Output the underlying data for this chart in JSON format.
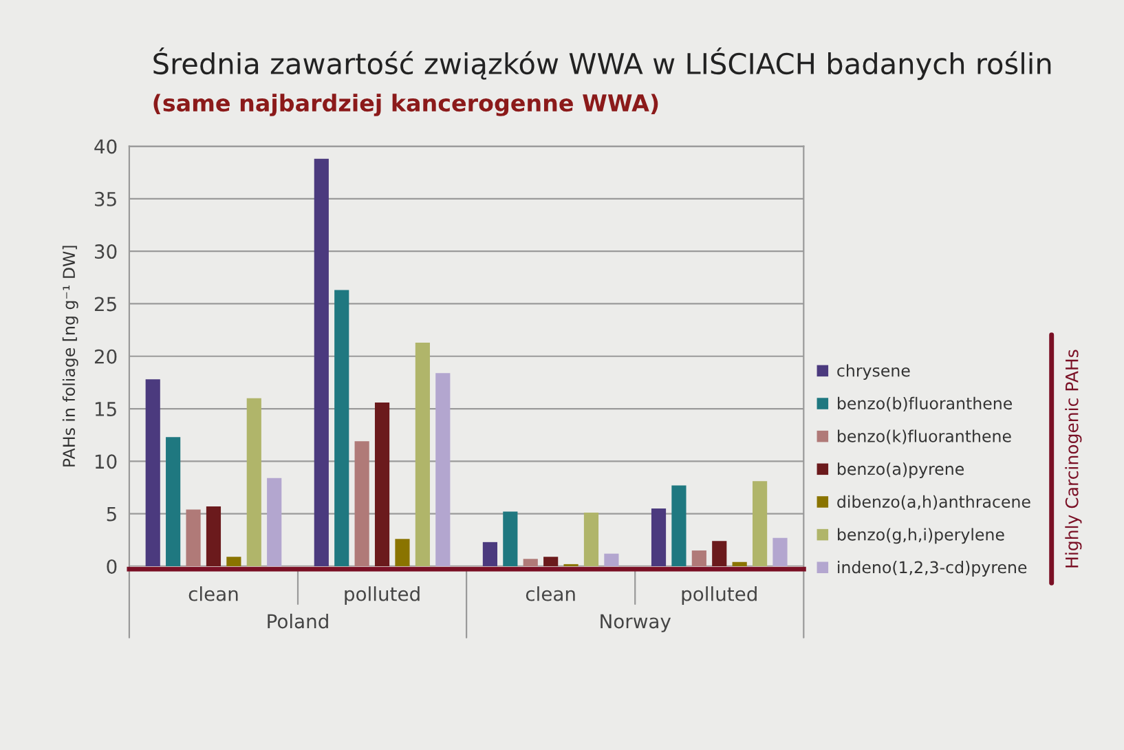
{
  "chart_data": {
    "type": "bar",
    "title": "Średnia zawartość związków WWA w LIŚCIACH badanych roślin",
    "subtitle": "(same najbardziej kancerogenne WWA)",
    "ylabel": "PAHs in foliage [ng g⁻¹ DW]",
    "legend_title": "Highly Carcinogenic PAHs",
    "categories": [
      "clean",
      "polluted",
      "clean",
      "polluted"
    ],
    "annotations": [
      "Poland",
      "Norway"
    ],
    "series": [
      {
        "name": "chrysene",
        "color": "#4b3a7e",
        "values": [
          17.8,
          38.8,
          2.3,
          5.5
        ]
      },
      {
        "name": "benzo(b)fluoranthene",
        "color": "#1f7880",
        "values": [
          12.3,
          26.3,
          5.2,
          7.7
        ]
      },
      {
        "name": "benzo(k)fluoranthene",
        "color": "#b07a78",
        "values": [
          5.4,
          11.9,
          0.7,
          1.5
        ]
      },
      {
        "name": "benzo(a)pyrene",
        "color": "#6b1a1c",
        "values": [
          5.7,
          15.6,
          0.9,
          2.4
        ]
      },
      {
        "name": "dibenzo(a,h)anthracene",
        "color": "#8a7400",
        "values": [
          0.9,
          2.6,
          0.2,
          0.4
        ]
      },
      {
        "name": "benzo(g,h,i)perylene",
        "color": "#b0b56a",
        "values": [
          16.0,
          21.3,
          5.1,
          8.1
        ]
      },
      {
        "name": "indeno(1,2,3-cd)pyrene",
        "color": "#b3a6cf",
        "values": [
          8.4,
          18.4,
          1.2,
          2.7
        ]
      }
    ],
    "ylim": [
      0,
      40
    ],
    "yticks": [
      0,
      5,
      10,
      15,
      20,
      25,
      30,
      35,
      40
    ],
    "grid": "y",
    "legend": "right"
  }
}
